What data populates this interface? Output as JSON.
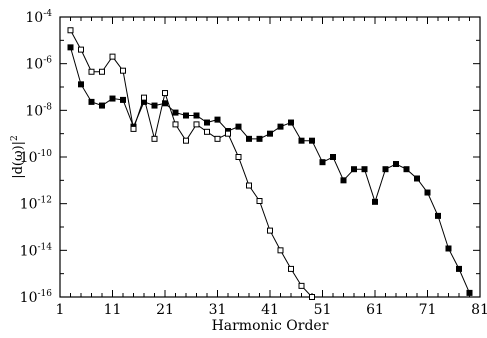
{
  "chart_data": {
    "type": "line",
    "xlabel": "Harmonic Order",
    "ylabel_base": "|d(ω)|",
    "ylabel_exp": "2",
    "y_scale": "log",
    "xlim": [
      1,
      81
    ],
    "ylim": [
      1e-16,
      0.0001
    ],
    "x_ticks": [
      1,
      11,
      21,
      31,
      41,
      51,
      61,
      71,
      81
    ],
    "y_ticks": [
      {
        "value": 1e-16,
        "base": "10",
        "exp": "-16"
      },
      {
        "value": 1e-14,
        "base": "10",
        "exp": "-14"
      },
      {
        "value": 1e-12,
        "base": "10",
        "exp": "-12"
      },
      {
        "value": 1e-10,
        "base": "10",
        "exp": "-10"
      },
      {
        "value": 1e-08,
        "base": "10",
        "exp": "-8"
      },
      {
        "value": 1e-06,
        "base": "10",
        "exp": "-6"
      },
      {
        "value": 0.0001,
        "base": "10",
        "exp": "-4"
      }
    ],
    "grid": false,
    "legend": "none",
    "series": [
      {
        "marker": "filled-square",
        "color": "#000000",
        "x": [
          3,
          5,
          7,
          9,
          11,
          13,
          15,
          17,
          19,
          21,
          23,
          25,
          27,
          29,
          31,
          33,
          35,
          37,
          39,
          41,
          43,
          45,
          47,
          49,
          51,
          53,
          55,
          57,
          59,
          61,
          63,
          65,
          67,
          69,
          71,
          73,
          75,
          77,
          79
        ],
        "y": [
          5e-06,
          1.3e-07,
          2.3e-08,
          1.6e-08,
          3.2e-08,
          2.8e-08,
          2e-09,
          2.3e-08,
          1.6e-08,
          2e-08,
          8e-09,
          6e-09,
          6e-09,
          3e-09,
          4e-09,
          1.3e-09,
          2e-09,
          6e-10,
          6e-10,
          1e-09,
          2e-09,
          3e-09,
          5e-10,
          5e-10,
          6e-11,
          1e-10,
          1e-11,
          3e-11,
          3e-11,
          1.2e-12,
          3e-11,
          5e-11,
          3e-11,
          1.2e-11,
          3e-12,
          3e-13,
          1.2e-14,
          1.6e-15,
          1.5e-16
        ]
      },
      {
        "marker": "open-square",
        "color": "#000000",
        "x": [
          3,
          5,
          7,
          9,
          11,
          13,
          15,
          17,
          19,
          21,
          23,
          25,
          27,
          29,
          31,
          33,
          35,
          37,
          39,
          41,
          43,
          45,
          47,
          49
        ],
        "y": [
          2.7e-05,
          4e-06,
          4.5e-07,
          4.5e-07,
          2e-06,
          5e-07,
          1.6e-09,
          3.5e-08,
          6e-10,
          5.5e-08,
          2.5e-09,
          5e-10,
          2.5e-09,
          1.2e-09,
          6e-10,
          1e-09,
          1e-10,
          6e-12,
          1.3e-12,
          7e-14,
          1e-14,
          1.6e-15,
          3e-16,
          1e-16
        ]
      }
    ]
  }
}
